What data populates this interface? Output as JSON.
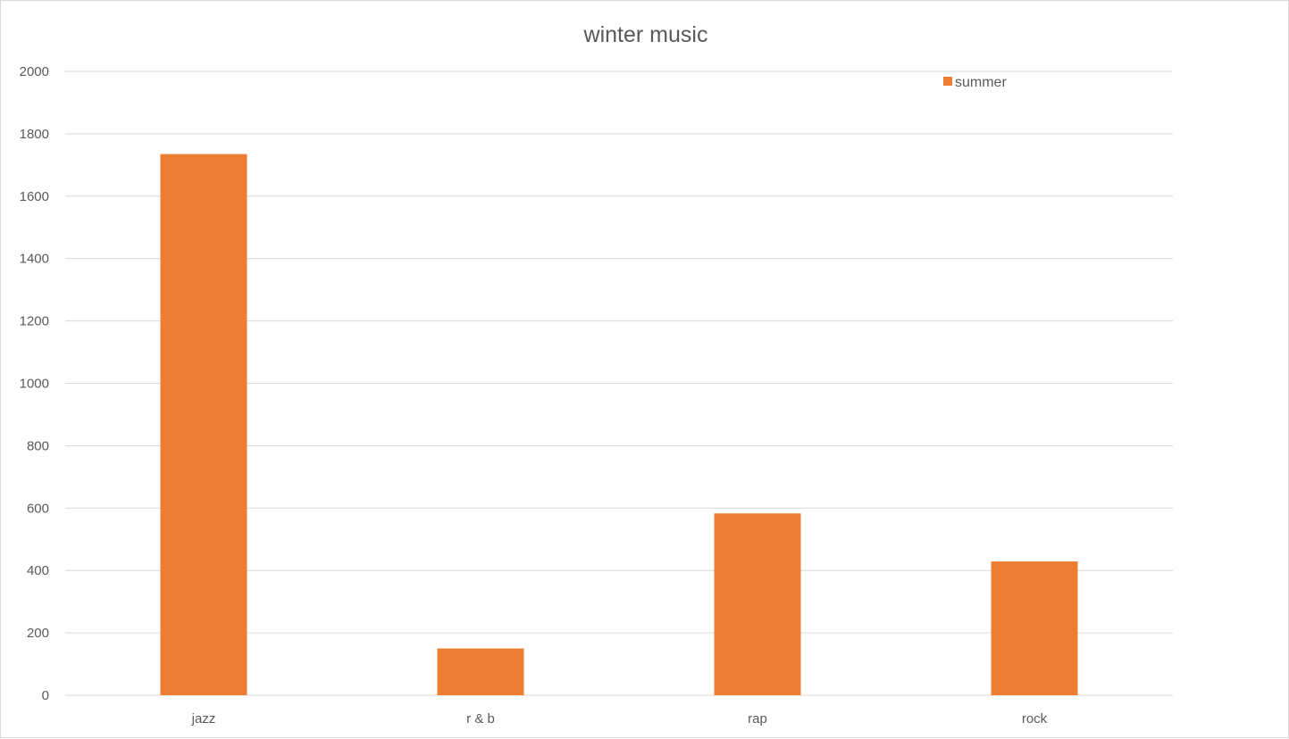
{
  "chart_data": {
    "type": "bar",
    "title": "winter music",
    "xlabel": "",
    "ylabel": "",
    "categories": [
      "jazz",
      "r & b",
      "rap",
      "rock"
    ],
    "series": [
      {
        "name": "summer",
        "values": [
          1735,
          150,
          583,
          429
        ],
        "color": "#ED7D31"
      }
    ],
    "ylim": [
      0,
      2000
    ],
    "yticks": [
      "0",
      "200",
      "400",
      "600",
      "800",
      "1000",
      "1200",
      "1400",
      "1600",
      "1800",
      "2000"
    ],
    "grid": true,
    "legend_position": "top-right"
  }
}
